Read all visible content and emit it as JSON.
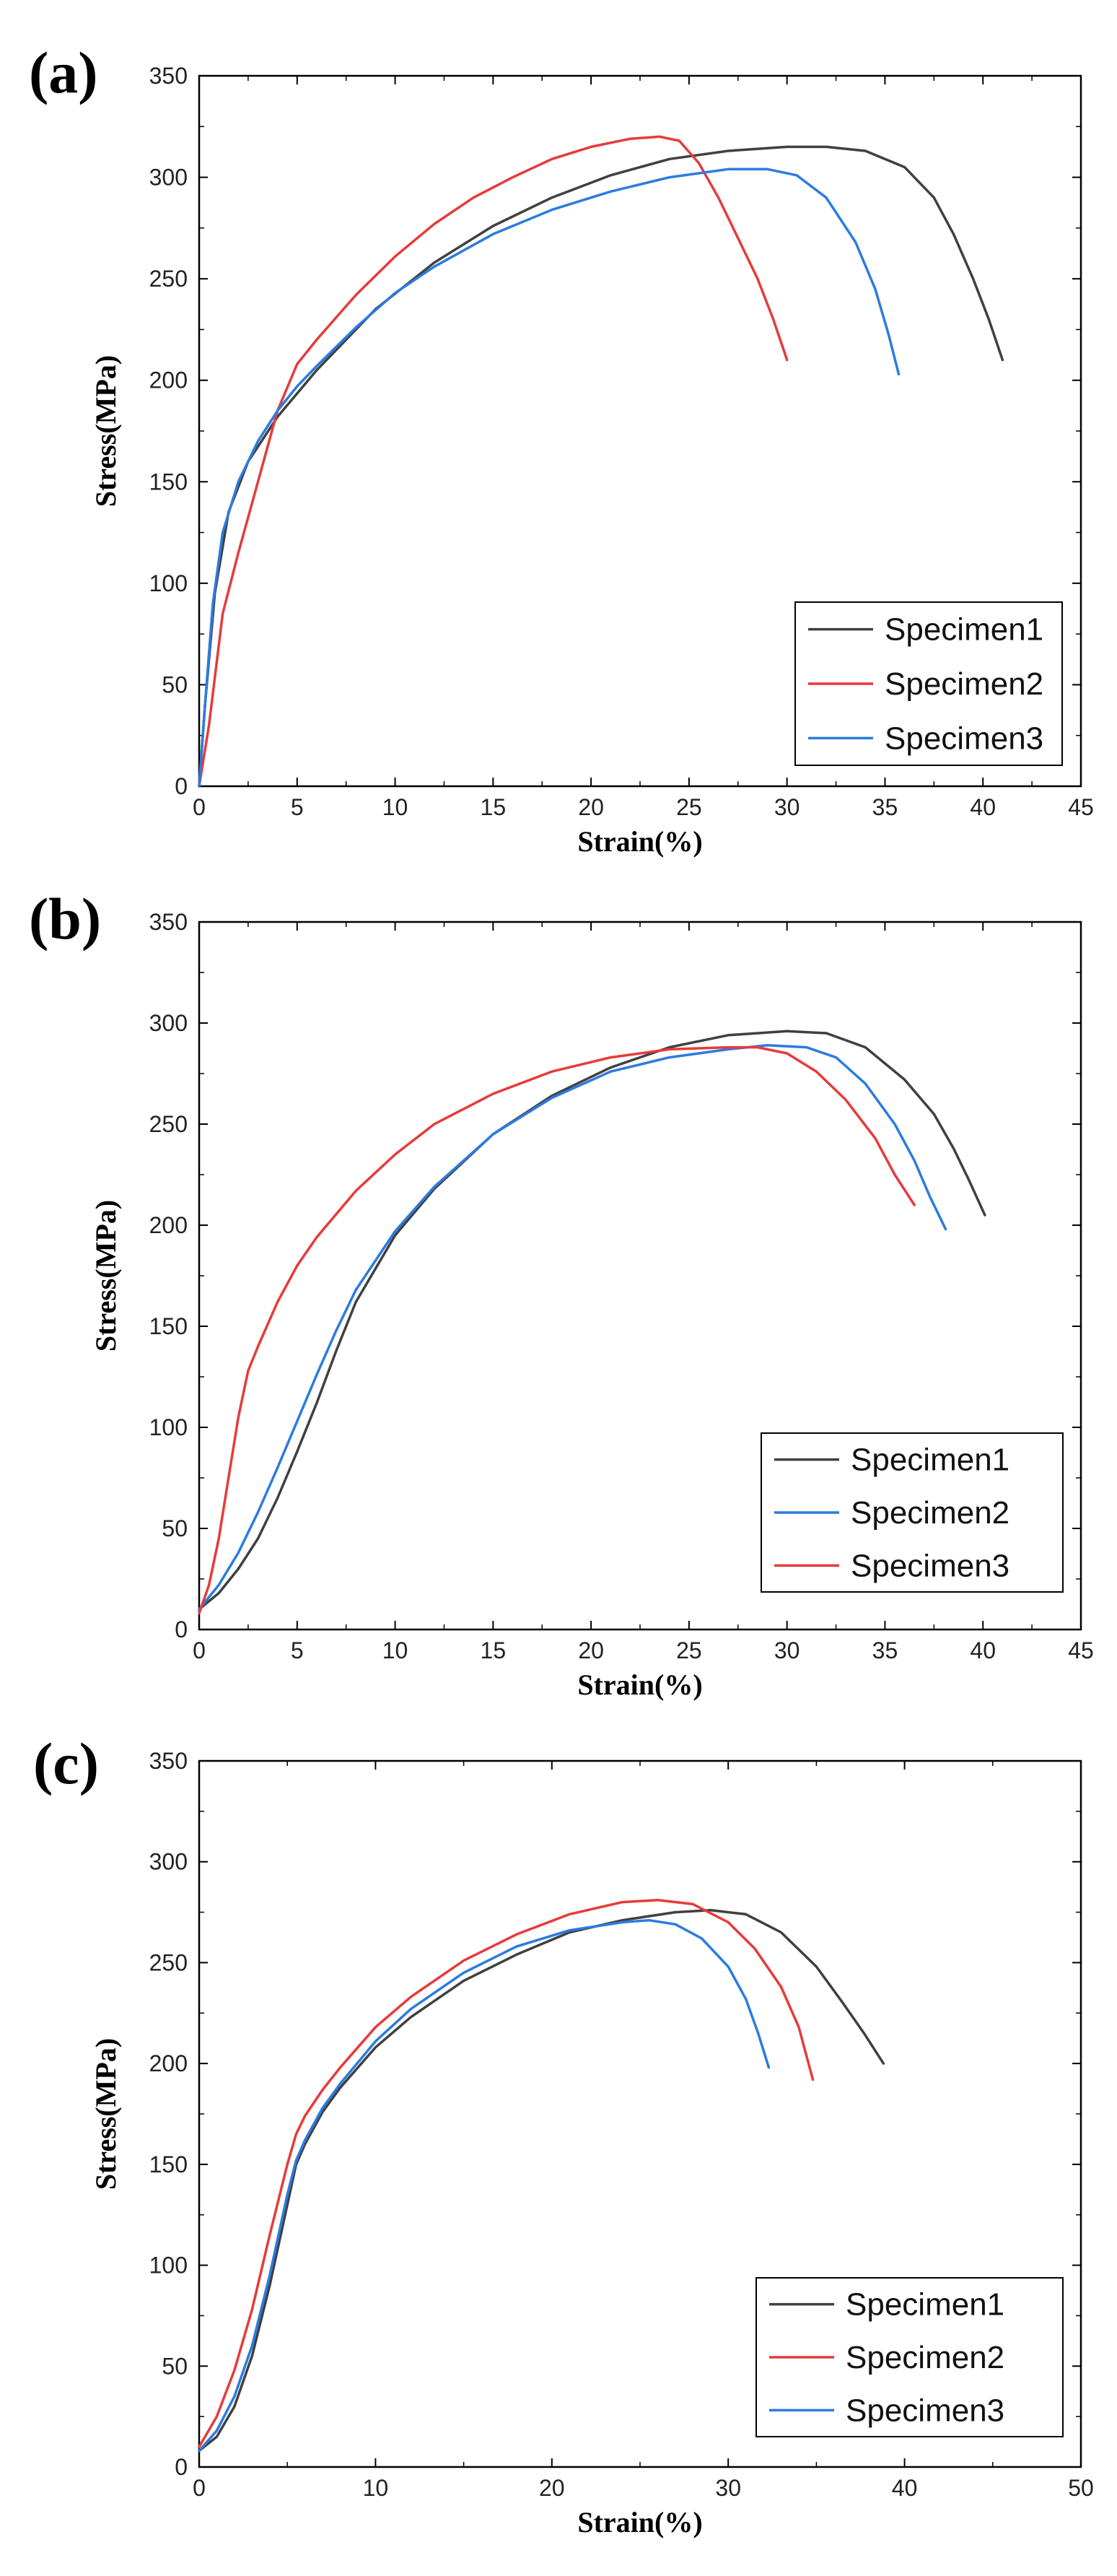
{
  "chart_data": [
    {
      "panel_label": "(a)",
      "type": "line",
      "xlabel": "Strain(%)",
      "ylabel": "Stress(MPa)",
      "xlim": [
        0,
        45
      ],
      "ylim": [
        0,
        350
      ],
      "xticks": [
        0,
        5,
        10,
        15,
        20,
        25,
        30,
        35,
        40,
        45
      ],
      "yticks": [
        0,
        50,
        100,
        150,
        200,
        250,
        300,
        350
      ],
      "legend_position": "bottom-right",
      "series": [
        {
          "name": "Specimen1",
          "color": "#404040",
          "x": [
            0,
            0.3,
            0.8,
            1.5,
            2.5,
            4,
            6,
            9,
            12,
            15,
            18,
            21,
            24,
            27,
            30,
            32,
            34,
            36,
            37.5,
            38.5,
            39.5,
            40.3,
            41
          ],
          "y": [
            0,
            40,
            95,
            135,
            160,
            182,
            205,
            235,
            258,
            276,
            290,
            301,
            309,
            313,
            315,
            315,
            313,
            305,
            290,
            272,
            250,
            230,
            210
          ]
        },
        {
          "name": "Specimen2",
          "color": "#e83a3a",
          "x": [
            0,
            0.5,
            1.2,
            2,
            3,
            4,
            5,
            6,
            8,
            10,
            12,
            14,
            16,
            18,
            20,
            22,
            23.5,
            24.5,
            25.5,
            26.5,
            27.5,
            28.5,
            29.3,
            30
          ],
          "y": [
            0,
            30,
            85,
            115,
            150,
            185,
            208,
            220,
            242,
            261,
            277,
            290,
            300,
            309,
            315,
            319,
            320,
            318,
            307,
            290,
            270,
            250,
            230,
            210
          ]
        },
        {
          "name": "Specimen3",
          "color": "#2c7be0",
          "x": [
            0,
            0.3,
            0.7,
            1.2,
            2,
            3,
            4,
            5,
            6,
            8,
            10,
            12,
            15,
            18,
            21,
            24,
            27,
            29,
            30.5,
            32,
            33.5,
            34.5,
            35.2,
            35.7
          ],
          "y": [
            0,
            40,
            90,
            125,
            150,
            170,
            185,
            197,
            207,
            226,
            243,
            256,
            272,
            284,
            293,
            300,
            304,
            304,
            301,
            290,
            268,
            245,
            222,
            203
          ]
        }
      ]
    },
    {
      "panel_label": "(b)",
      "type": "line",
      "xlabel": "Strain(%)",
      "ylabel": "Stress(MPa)",
      "xlim": [
        0,
        45
      ],
      "ylim": [
        0,
        350
      ],
      "xticks": [
        0,
        5,
        10,
        15,
        20,
        25,
        30,
        35,
        40,
        45
      ],
      "yticks": [
        0,
        50,
        100,
        150,
        200,
        250,
        300,
        350
      ],
      "legend_position": "bottom-right",
      "series": [
        {
          "name": "Specimen1",
          "color": "#404040",
          "x": [
            0,
            1,
            2,
            3,
            4,
            5,
            6,
            7,
            8,
            10,
            12,
            15,
            18,
            21,
            24,
            27,
            30,
            32,
            34,
            36,
            37.5,
            38.5,
            39.3,
            40.1
          ],
          "y": [
            10,
            18,
            30,
            45,
            65,
            88,
            112,
            138,
            162,
            195,
            218,
            245,
            264,
            278,
            288,
            294,
            296,
            295,
            288,
            272,
            255,
            238,
            222,
            205
          ]
        },
        {
          "name": "Specimen2",
          "color": "#2c7be0",
          "x": [
            0,
            1,
            2,
            3,
            4,
            5,
            6,
            7,
            8,
            10,
            12,
            15,
            18,
            21,
            24,
            27,
            29,
            31,
            32.5,
            34,
            35.5,
            36.5,
            37.3,
            38.1
          ],
          "y": [
            10,
            22,
            38,
            58,
            80,
            103,
            126,
            148,
            168,
            197,
            219,
            245,
            263,
            276,
            283,
            287,
            289,
            288,
            283,
            270,
            250,
            232,
            214,
            198
          ]
        },
        {
          "name": "Specimen3",
          "color": "#e83a3a",
          "x": [
            0,
            0.5,
            1,
            1.5,
            2,
            2.5,
            3,
            4,
            5,
            6,
            8,
            10,
            12,
            15,
            18,
            21,
            24,
            27,
            28.5,
            30,
            31.5,
            33,
            34.5,
            35.5,
            36.5
          ],
          "y": [
            8,
            22,
            45,
            75,
            105,
            128,
            140,
            162,
            180,
            194,
            217,
            235,
            250,
            265,
            276,
            283,
            287,
            288,
            288,
            285,
            276,
            262,
            243,
            225,
            210
          ]
        }
      ]
    },
    {
      "panel_label": "(c)",
      "type": "line",
      "xlabel": "Strain(%)",
      "ylabel": "Stress(MPa)",
      "xlim": [
        0,
        50
      ],
      "ylim": [
        0,
        350
      ],
      "xticks": [
        0,
        10,
        20,
        30,
        40,
        50
      ],
      "yticks": [
        0,
        50,
        100,
        150,
        200,
        250,
        300,
        350
      ],
      "legend_position": "bottom-right",
      "series": [
        {
          "name": "Specimen1",
          "color": "#404040",
          "x": [
            0,
            1,
            2,
            3,
            4,
            5,
            5.5,
            6,
            7,
            8,
            10,
            12,
            15,
            18,
            21,
            24,
            27,
            29,
            31,
            33,
            35,
            36.5,
            37.7,
            38.8
          ],
          "y": [
            8,
            15,
            30,
            55,
            90,
            130,
            150,
            160,
            176,
            188,
            208,
            223,
            241,
            254,
            265,
            271,
            275,
            276,
            274,
            265,
            248,
            230,
            215,
            200
          ]
        },
        {
          "name": "Specimen2",
          "color": "#e83a3a",
          "x": [
            0,
            1,
            2,
            3,
            4,
            5,
            5.5,
            6,
            7,
            8,
            10,
            12,
            15,
            18,
            21,
            24,
            26,
            28,
            30,
            31.5,
            33,
            34,
            34.8
          ],
          "y": [
            10,
            25,
            48,
            78,
            115,
            150,
            165,
            174,
            187,
            198,
            218,
            233,
            251,
            264,
            274,
            280,
            281,
            279,
            270,
            257,
            238,
            218,
            192
          ]
        },
        {
          "name": "Specimen3",
          "color": "#2c7be0",
          "x": [
            0,
            1,
            2,
            3,
            4,
            5,
            5.5,
            6,
            7,
            8,
            10,
            12,
            15,
            18,
            21,
            24,
            25.5,
            27,
            28.5,
            30,
            31,
            31.7,
            32.3
          ],
          "y": [
            8,
            18,
            35,
            60,
            95,
            135,
            152,
            162,
            178,
            190,
            211,
            227,
            245,
            258,
            266,
            270,
            271,
            269,
            262,
            248,
            232,
            215,
            198
          ]
        }
      ]
    }
  ]
}
